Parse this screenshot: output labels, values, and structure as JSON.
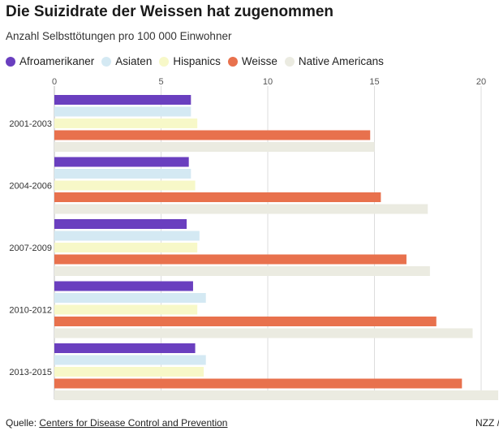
{
  "header": {
    "title": "Die Suizidrate der Weissen hat zugenommen",
    "subtitle": "Anzahl Selbsttötungen pro 100 000 Einwohner"
  },
  "footer": {
    "source_prefix": "Quelle: ",
    "source_link": "Centers for Disease Control and Prevention",
    "credit": "NZZ /"
  },
  "chart_data": {
    "type": "bar",
    "orientation": "horizontal",
    "title": "Die Suizidrate der Weissen hat zugenommen",
    "subtitle": "Anzahl Selbsttötungen pro 100 000 Einwohner",
    "categories": [
      "2001-2003",
      "2004-2006",
      "2007-2009",
      "2010-2012",
      "2013-2015"
    ],
    "x_ticks": [
      0,
      5,
      10,
      15,
      20
    ],
    "xlim": [
      0,
      20
    ],
    "grid": true,
    "legend_position": "top",
    "series": [
      {
        "name": "Afroamerikaner",
        "color": "#6a3fbf",
        "values": [
          6.4,
          6.3,
          6.2,
          6.5,
          6.6
        ]
      },
      {
        "name": "Asiaten",
        "color": "#d4e9f3",
        "values": [
          6.4,
          6.4,
          6.8,
          7.1,
          7.1
        ]
      },
      {
        "name": "Hispanics",
        "color": "#f7f8c8",
        "values": [
          6.7,
          6.6,
          6.7,
          6.7,
          7.0
        ]
      },
      {
        "name": "Weisse",
        "color": "#e8714d",
        "values": [
          14.8,
          15.3,
          16.5,
          17.9,
          19.1
        ]
      },
      {
        "name": "Native Americans",
        "color": "#ebebe1",
        "values": [
          15.0,
          17.5,
          17.6,
          19.6,
          20.8
        ]
      }
    ]
  }
}
